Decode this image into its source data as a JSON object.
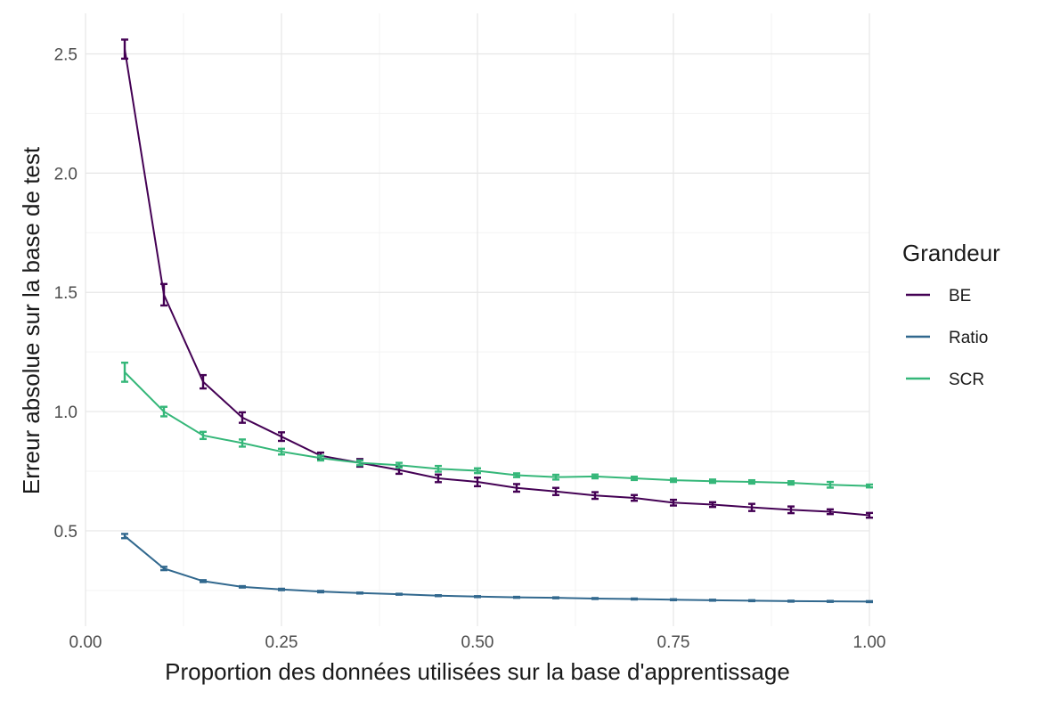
{
  "chart_data": {
    "type": "line",
    "xlabel": "Proportion des données utilisées sur la base d'apprentissage",
    "ylabel": "Erreur absolue sur la base de test",
    "xlim": [
      0.0,
      1.0
    ],
    "ylim": [
      0.1,
      2.67
    ],
    "x_ticks": [
      0.0,
      0.25,
      0.5,
      0.75,
      1.0
    ],
    "x_tick_labels": [
      "0.00",
      "0.25",
      "0.50",
      "0.75",
      "1.00"
    ],
    "y_ticks": [
      0.5,
      1.0,
      1.5,
      2.0,
      2.5
    ],
    "y_tick_labels": [
      "0.5",
      "1.0",
      "1.5",
      "2.0",
      "2.5"
    ],
    "grid": true,
    "legend": {
      "title": "Grandeur",
      "position": "right"
    },
    "x": [
      0.05,
      0.1,
      0.15,
      0.2,
      0.25,
      0.3,
      0.35,
      0.4,
      0.45,
      0.5,
      0.55,
      0.6,
      0.65,
      0.7,
      0.75,
      0.8,
      0.85,
      0.9,
      0.95,
      1.0
    ],
    "series": [
      {
        "name": "BE",
        "color": "#440154",
        "values": [
          2.52,
          1.49,
          1.125,
          0.975,
          0.895,
          0.815,
          0.785,
          0.755,
          0.72,
          0.705,
          0.68,
          0.665,
          0.648,
          0.638,
          0.618,
          0.61,
          0.598,
          0.588,
          0.58,
          0.565
        ],
        "error": [
          0.04,
          0.045,
          0.028,
          0.022,
          0.018,
          0.013,
          0.016,
          0.016,
          0.016,
          0.018,
          0.016,
          0.015,
          0.014,
          0.012,
          0.012,
          0.01,
          0.015,
          0.014,
          0.01,
          0.01
        ]
      },
      {
        "name": "Ratio",
        "color": "#31688e",
        "values": [
          0.478,
          0.342,
          0.289,
          0.265,
          0.254,
          0.245,
          0.239,
          0.234,
          0.228,
          0.224,
          0.221,
          0.219,
          0.216,
          0.214,
          0.211,
          0.209,
          0.207,
          0.205,
          0.204,
          0.203
        ],
        "error": [
          0.009,
          0.007,
          0.004,
          0.003,
          0.003,
          0.003,
          0.002,
          0.002,
          0.002,
          0.002,
          0.002,
          0.002,
          0.002,
          0.002,
          0.002,
          0.002,
          0.002,
          0.002,
          0.002,
          0.002
        ]
      },
      {
        "name": "SCR",
        "color": "#35b779",
        "values": [
          1.165,
          1.0,
          0.9,
          0.868,
          0.832,
          0.805,
          0.785,
          0.775,
          0.76,
          0.752,
          0.733,
          0.725,
          0.728,
          0.72,
          0.712,
          0.708,
          0.705,
          0.701,
          0.693,
          0.688
        ],
        "error": [
          0.04,
          0.02,
          0.015,
          0.015,
          0.012,
          0.01,
          0.01,
          0.01,
          0.012,
          0.01,
          0.008,
          0.01,
          0.008,
          0.007,
          0.007,
          0.007,
          0.007,
          0.007,
          0.012,
          0.006
        ]
      }
    ]
  }
}
